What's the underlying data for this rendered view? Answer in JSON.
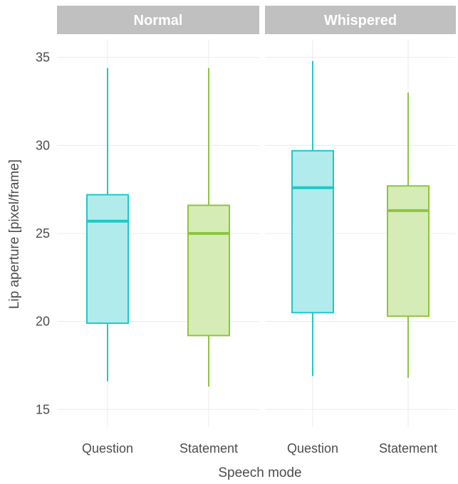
{
  "chart_data": {
    "type": "boxplot",
    "xlabel": "Speech mode",
    "ylabel": "Lip aperture [pixel/frame]",
    "ylim": [
      14,
      36
    ],
    "yticks": [
      15,
      20,
      25,
      30,
      35
    ],
    "categories": [
      "Question",
      "Statement"
    ],
    "category_colors": {
      "Question": {
        "stroke": "#1fc8c8",
        "fill": "#b2ebeb"
      },
      "Statement": {
        "stroke": "#8cc63f",
        "fill": "#d6ecb6"
      }
    },
    "strip_color": "#c0c0c0",
    "grid": true,
    "legend": "none",
    "panels": [
      {
        "name": "Normal",
        "boxes": [
          {
            "category": "Question",
            "min": 16.6,
            "q1": 19.9,
            "median": 25.7,
            "q3": 27.2,
            "max": 34.4
          },
          {
            "category": "Statement",
            "min": 16.3,
            "q1": 19.2,
            "median": 25.0,
            "q3": 26.6,
            "max": 34.4
          }
        ]
      },
      {
        "name": "Whispered",
        "boxes": [
          {
            "category": "Question",
            "min": 16.9,
            "q1": 20.5,
            "median": 27.6,
            "q3": 29.7,
            "max": 34.8
          },
          {
            "category": "Statement",
            "min": 16.8,
            "q1": 20.3,
            "median": 26.3,
            "q3": 27.7,
            "max": 33.0
          }
        ]
      }
    ]
  }
}
